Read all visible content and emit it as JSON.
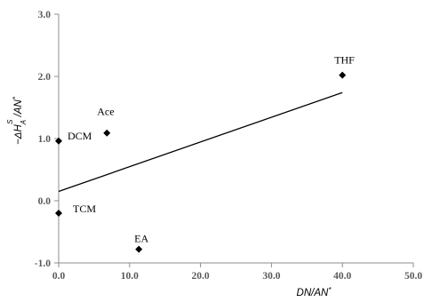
{
  "chart_data": {
    "type": "scatter",
    "title": "",
    "xlabel": "DN/AN*",
    "ylabel": "−ΔHᴬˢ/AN*",
    "xlim": [
      0,
      50
    ],
    "ylim": [
      -1,
      3
    ],
    "xticks": [
      "0.0",
      "10.0",
      "20.0",
      "30.0",
      "40.0",
      "50.0"
    ],
    "yticks": [
      "-1.0",
      "0.0",
      "1.0",
      "2.0",
      "3.0"
    ],
    "grid": false,
    "legend": "none",
    "marker_color": "#000000",
    "points": [
      {
        "label": "DCM",
        "x": 0.0,
        "y": 0.96
      },
      {
        "label": "Ace",
        "x": 6.8,
        "y": 1.09
      },
      {
        "label": "THF",
        "x": 40.0,
        "y": 2.02
      },
      {
        "label": "TCM",
        "x": 0.0,
        "y": -0.2
      },
      {
        "label": "EA",
        "x": 11.3,
        "y": -0.78
      }
    ],
    "trendline": {
      "x": [
        0,
        40
      ],
      "y": [
        0.15,
        1.74
      ]
    }
  }
}
